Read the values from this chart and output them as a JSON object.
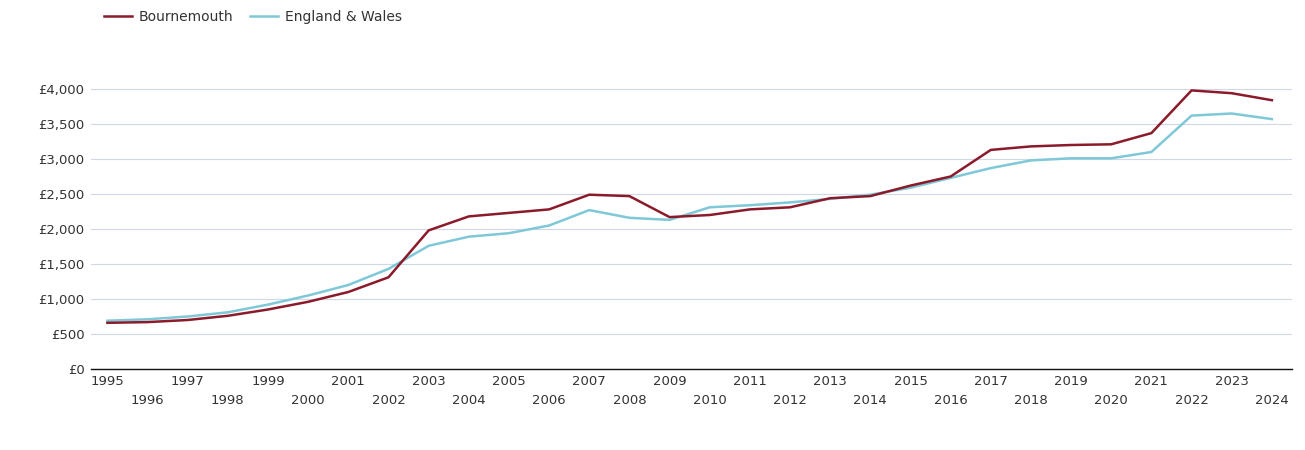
{
  "years": [
    1995,
    1996,
    1997,
    1998,
    1999,
    2000,
    2001,
    2002,
    2003,
    2004,
    2005,
    2006,
    2007,
    2008,
    2009,
    2010,
    2011,
    2012,
    2013,
    2014,
    2015,
    2016,
    2017,
    2018,
    2019,
    2020,
    2021,
    2022,
    2023,
    2024
  ],
  "bournemouth": [
    660,
    670,
    700,
    760,
    850,
    960,
    1100,
    1310,
    1980,
    2180,
    2230,
    2280,
    2490,
    2470,
    2170,
    2200,
    2280,
    2310,
    2440,
    2470,
    2620,
    2750,
    3130,
    3180,
    3200,
    3210,
    3370,
    3980,
    3940,
    3840
  ],
  "england_wales": [
    690,
    710,
    750,
    810,
    920,
    1050,
    1200,
    1430,
    1760,
    1890,
    1940,
    2050,
    2270,
    2160,
    2130,
    2310,
    2340,
    2380,
    2430,
    2490,
    2590,
    2730,
    2870,
    2980,
    3010,
    3010,
    3100,
    3620,
    3650,
    3570
  ],
  "bournemouth_color": "#8b1a2a",
  "england_wales_color": "#7ec8d8",
  "line_width": 1.8,
  "ylim": [
    0,
    4500
  ],
  "yticks": [
    0,
    500,
    1000,
    1500,
    2000,
    2500,
    3000,
    3500,
    4000
  ],
  "ytick_labels": [
    "£0",
    "£500",
    "£1,000",
    "£1,500",
    "£2,000",
    "£2,500",
    "£3,000",
    "£3,500",
    "£4,000"
  ],
  "legend_bournemouth": "Bournemouth",
  "legend_england_wales": "England & Wales",
  "background_color": "#ffffff",
  "grid_color": "#d0d8e8",
  "tick_font_size": 9.5,
  "legend_font_size": 10,
  "xlim": [
    1994.6,
    2024.5
  ]
}
